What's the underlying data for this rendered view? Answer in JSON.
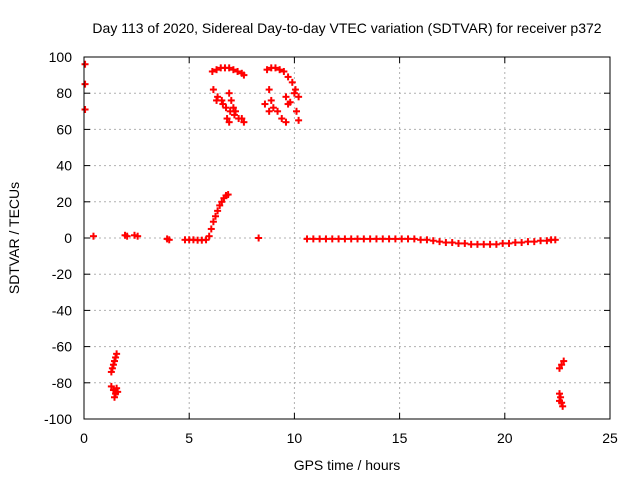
{
  "chart_data": {
    "type": "scatter",
    "title": "Day 113 of 2020, Sidereal Day-to-day VTEC variation (SDTVAR) for receiver p372",
    "xlabel": "GPS time / hours",
    "ylabel": "SDTVAR / TECUs",
    "xlim": [
      0,
      25
    ],
    "ylim": [
      -100,
      100
    ],
    "xticks": [
      0,
      5,
      10,
      15,
      20,
      25
    ],
    "yticks": [
      -100,
      -80,
      -60,
      -40,
      -20,
      0,
      20,
      40,
      60,
      80,
      100
    ],
    "grid": true,
    "marker": "plus",
    "series": [
      {
        "name": "SDTVAR",
        "color": "#ff0000",
        "points": [
          [
            0.05,
            96
          ],
          [
            0.05,
            85
          ],
          [
            0.05,
            71
          ],
          [
            0.45,
            1
          ],
          [
            1.95,
            1.5
          ],
          [
            2.05,
            1
          ],
          [
            2.4,
            1.5
          ],
          [
            2.55,
            1
          ],
          [
            3.95,
            -0.5
          ],
          [
            4.05,
            -1
          ],
          [
            4.8,
            -1
          ],
          [
            5.0,
            -1
          ],
          [
            5.2,
            -1
          ],
          [
            5.4,
            -1.2
          ],
          [
            5.6,
            -1.2
          ],
          [
            5.8,
            -1
          ],
          [
            5.95,
            1
          ],
          [
            6.05,
            5
          ],
          [
            6.15,
            9
          ],
          [
            6.25,
            12
          ],
          [
            6.35,
            15
          ],
          [
            6.45,
            18
          ],
          [
            6.55,
            20
          ],
          [
            6.65,
            22
          ],
          [
            6.75,
            23.5
          ],
          [
            6.85,
            24
          ],
          [
            8.3,
            0
          ],
          [
            1.35,
            -72
          ],
          [
            1.4,
            -70
          ],
          [
            1.45,
            -68
          ],
          [
            1.5,
            -66
          ],
          [
            1.55,
            -64
          ],
          [
            1.3,
            -74
          ],
          [
            1.3,
            -82
          ],
          [
            1.4,
            -84
          ],
          [
            1.5,
            -86
          ],
          [
            1.6,
            -85
          ],
          [
            1.45,
            -88
          ],
          [
            1.55,
            -83
          ],
          [
            22.6,
            -72
          ],
          [
            22.7,
            -70
          ],
          [
            22.8,
            -68
          ],
          [
            22.6,
            -86
          ],
          [
            22.65,
            -88
          ],
          [
            22.7,
            -91
          ],
          [
            22.75,
            -93
          ],
          [
            22.6,
            -90
          ],
          [
            6.1,
            92
          ],
          [
            6.3,
            93
          ],
          [
            6.5,
            94
          ],
          [
            6.7,
            94
          ],
          [
            6.9,
            94
          ],
          [
            7.1,
            93
          ],
          [
            7.3,
            92
          ],
          [
            7.5,
            91
          ],
          [
            7.6,
            90
          ],
          [
            6.15,
            82
          ],
          [
            6.35,
            78
          ],
          [
            6.55,
            76
          ],
          [
            6.75,
            72
          ],
          [
            6.95,
            70
          ],
          [
            7.15,
            68
          ],
          [
            7.35,
            66
          ],
          [
            6.3,
            76
          ],
          [
            6.6,
            74
          ],
          [
            6.9,
            80
          ],
          [
            7.0,
            76
          ],
          [
            7.1,
            72
          ],
          [
            7.2,
            70
          ],
          [
            6.8,
            66
          ],
          [
            6.9,
            64
          ],
          [
            7.5,
            66
          ],
          [
            7.6,
            64
          ],
          [
            8.7,
            93
          ],
          [
            8.9,
            94
          ],
          [
            9.1,
            94
          ],
          [
            9.3,
            93
          ],
          [
            9.5,
            92
          ],
          [
            9.7,
            89
          ],
          [
            9.9,
            86
          ],
          [
            10.05,
            82
          ],
          [
            10.2,
            78
          ],
          [
            8.8,
            82
          ],
          [
            8.9,
            76
          ],
          [
            9.0,
            72
          ],
          [
            9.2,
            70
          ],
          [
            9.4,
            66
          ],
          [
            9.6,
            64
          ],
          [
            9.8,
            75
          ],
          [
            10.0,
            80
          ],
          [
            10.1,
            70
          ],
          [
            10.2,
            65
          ],
          [
            8.6,
            74
          ],
          [
            8.8,
            70
          ],
          [
            9.6,
            78
          ],
          [
            9.7,
            74
          ],
          [
            10.6,
            -0.5
          ],
          [
            10.9,
            -0.5
          ],
          [
            11.2,
            -0.5
          ],
          [
            11.5,
            -0.5
          ],
          [
            11.8,
            -0.5
          ],
          [
            12.1,
            -0.5
          ],
          [
            12.4,
            -0.5
          ],
          [
            12.7,
            -0.5
          ],
          [
            13.0,
            -0.5
          ],
          [
            13.3,
            -0.5
          ],
          [
            13.6,
            -0.5
          ],
          [
            13.9,
            -0.5
          ],
          [
            14.2,
            -0.5
          ],
          [
            14.5,
            -0.5
          ],
          [
            14.8,
            -0.5
          ],
          [
            15.1,
            -0.5
          ],
          [
            15.4,
            -0.5
          ],
          [
            15.7,
            -0.5
          ],
          [
            16.0,
            -1
          ],
          [
            16.3,
            -1
          ],
          [
            16.6,
            -1.5
          ],
          [
            16.9,
            -2
          ],
          [
            17.2,
            -2.5
          ],
          [
            17.5,
            -2.5
          ],
          [
            17.8,
            -3
          ],
          [
            18.1,
            -3
          ],
          [
            18.4,
            -3.5
          ],
          [
            18.7,
            -3.5
          ],
          [
            19.0,
            -3.5
          ],
          [
            19.3,
            -3.5
          ],
          [
            19.6,
            -3.5
          ],
          [
            19.9,
            -3
          ],
          [
            20.2,
            -3
          ],
          [
            20.5,
            -2.5
          ],
          [
            20.8,
            -2.5
          ],
          [
            21.1,
            -2
          ],
          [
            21.4,
            -2
          ],
          [
            21.7,
            -1.5
          ],
          [
            22.0,
            -1.5
          ],
          [
            22.2,
            -1
          ],
          [
            22.4,
            -1
          ]
        ]
      }
    ]
  }
}
